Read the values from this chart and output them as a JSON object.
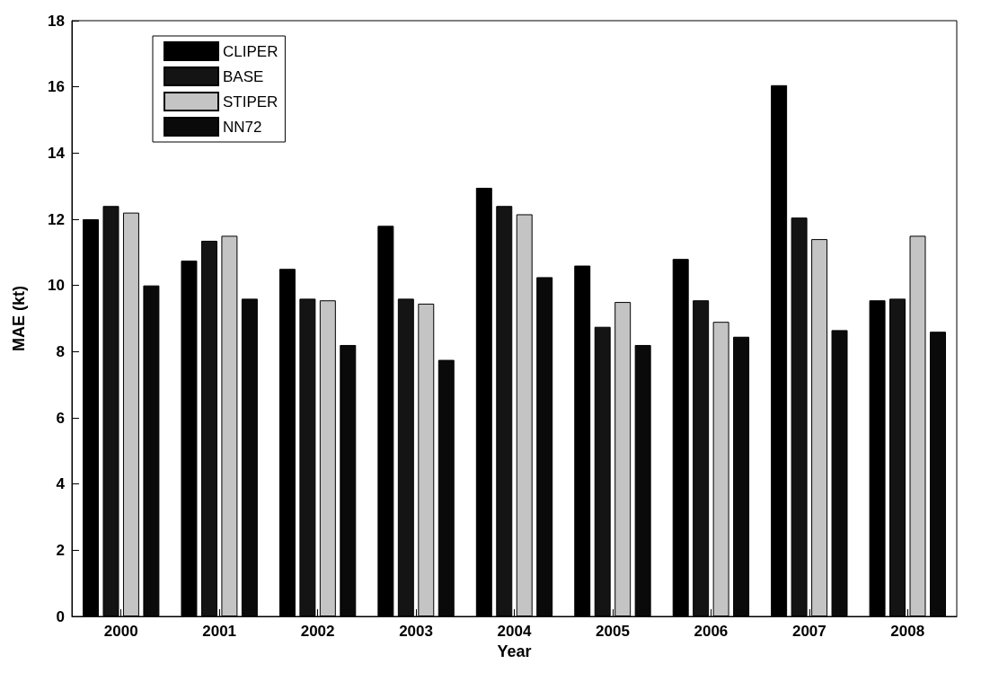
{
  "chart_data": {
    "type": "bar",
    "xlabel": "Year",
    "ylabel": "MAE (kt)",
    "categories": [
      "2000",
      "2001",
      "2002",
      "2003",
      "2004",
      "2005",
      "2006",
      "2007",
      "2008"
    ],
    "series": [
      {
        "name": "CLIPER",
        "color": "#000000",
        "values": [
          12.0,
          10.75,
          10.5,
          11.8,
          12.95,
          10.6,
          10.8,
          16.05,
          9.55
        ]
      },
      {
        "name": "BASE",
        "color": "#141414",
        "values": [
          12.4,
          11.35,
          9.6,
          9.6,
          12.4,
          8.75,
          9.55,
          12.05,
          9.6
        ]
      },
      {
        "name": "STIPER",
        "color": "#c4c4c4",
        "values": [
          12.2,
          11.5,
          9.55,
          9.45,
          12.15,
          9.5,
          8.9,
          11.4,
          11.5
        ]
      },
      {
        "name": "NN72",
        "color": "#0a0a0a",
        "values": [
          10.0,
          9.6,
          8.2,
          7.75,
          10.25,
          8.2,
          8.45,
          8.65,
          8.6
        ]
      }
    ],
    "ylim": [
      0,
      18
    ],
    "yticks": [
      0,
      2,
      4,
      6,
      8,
      10,
      12,
      14,
      16,
      18
    ],
    "grid": false,
    "legend": "top left"
  }
}
